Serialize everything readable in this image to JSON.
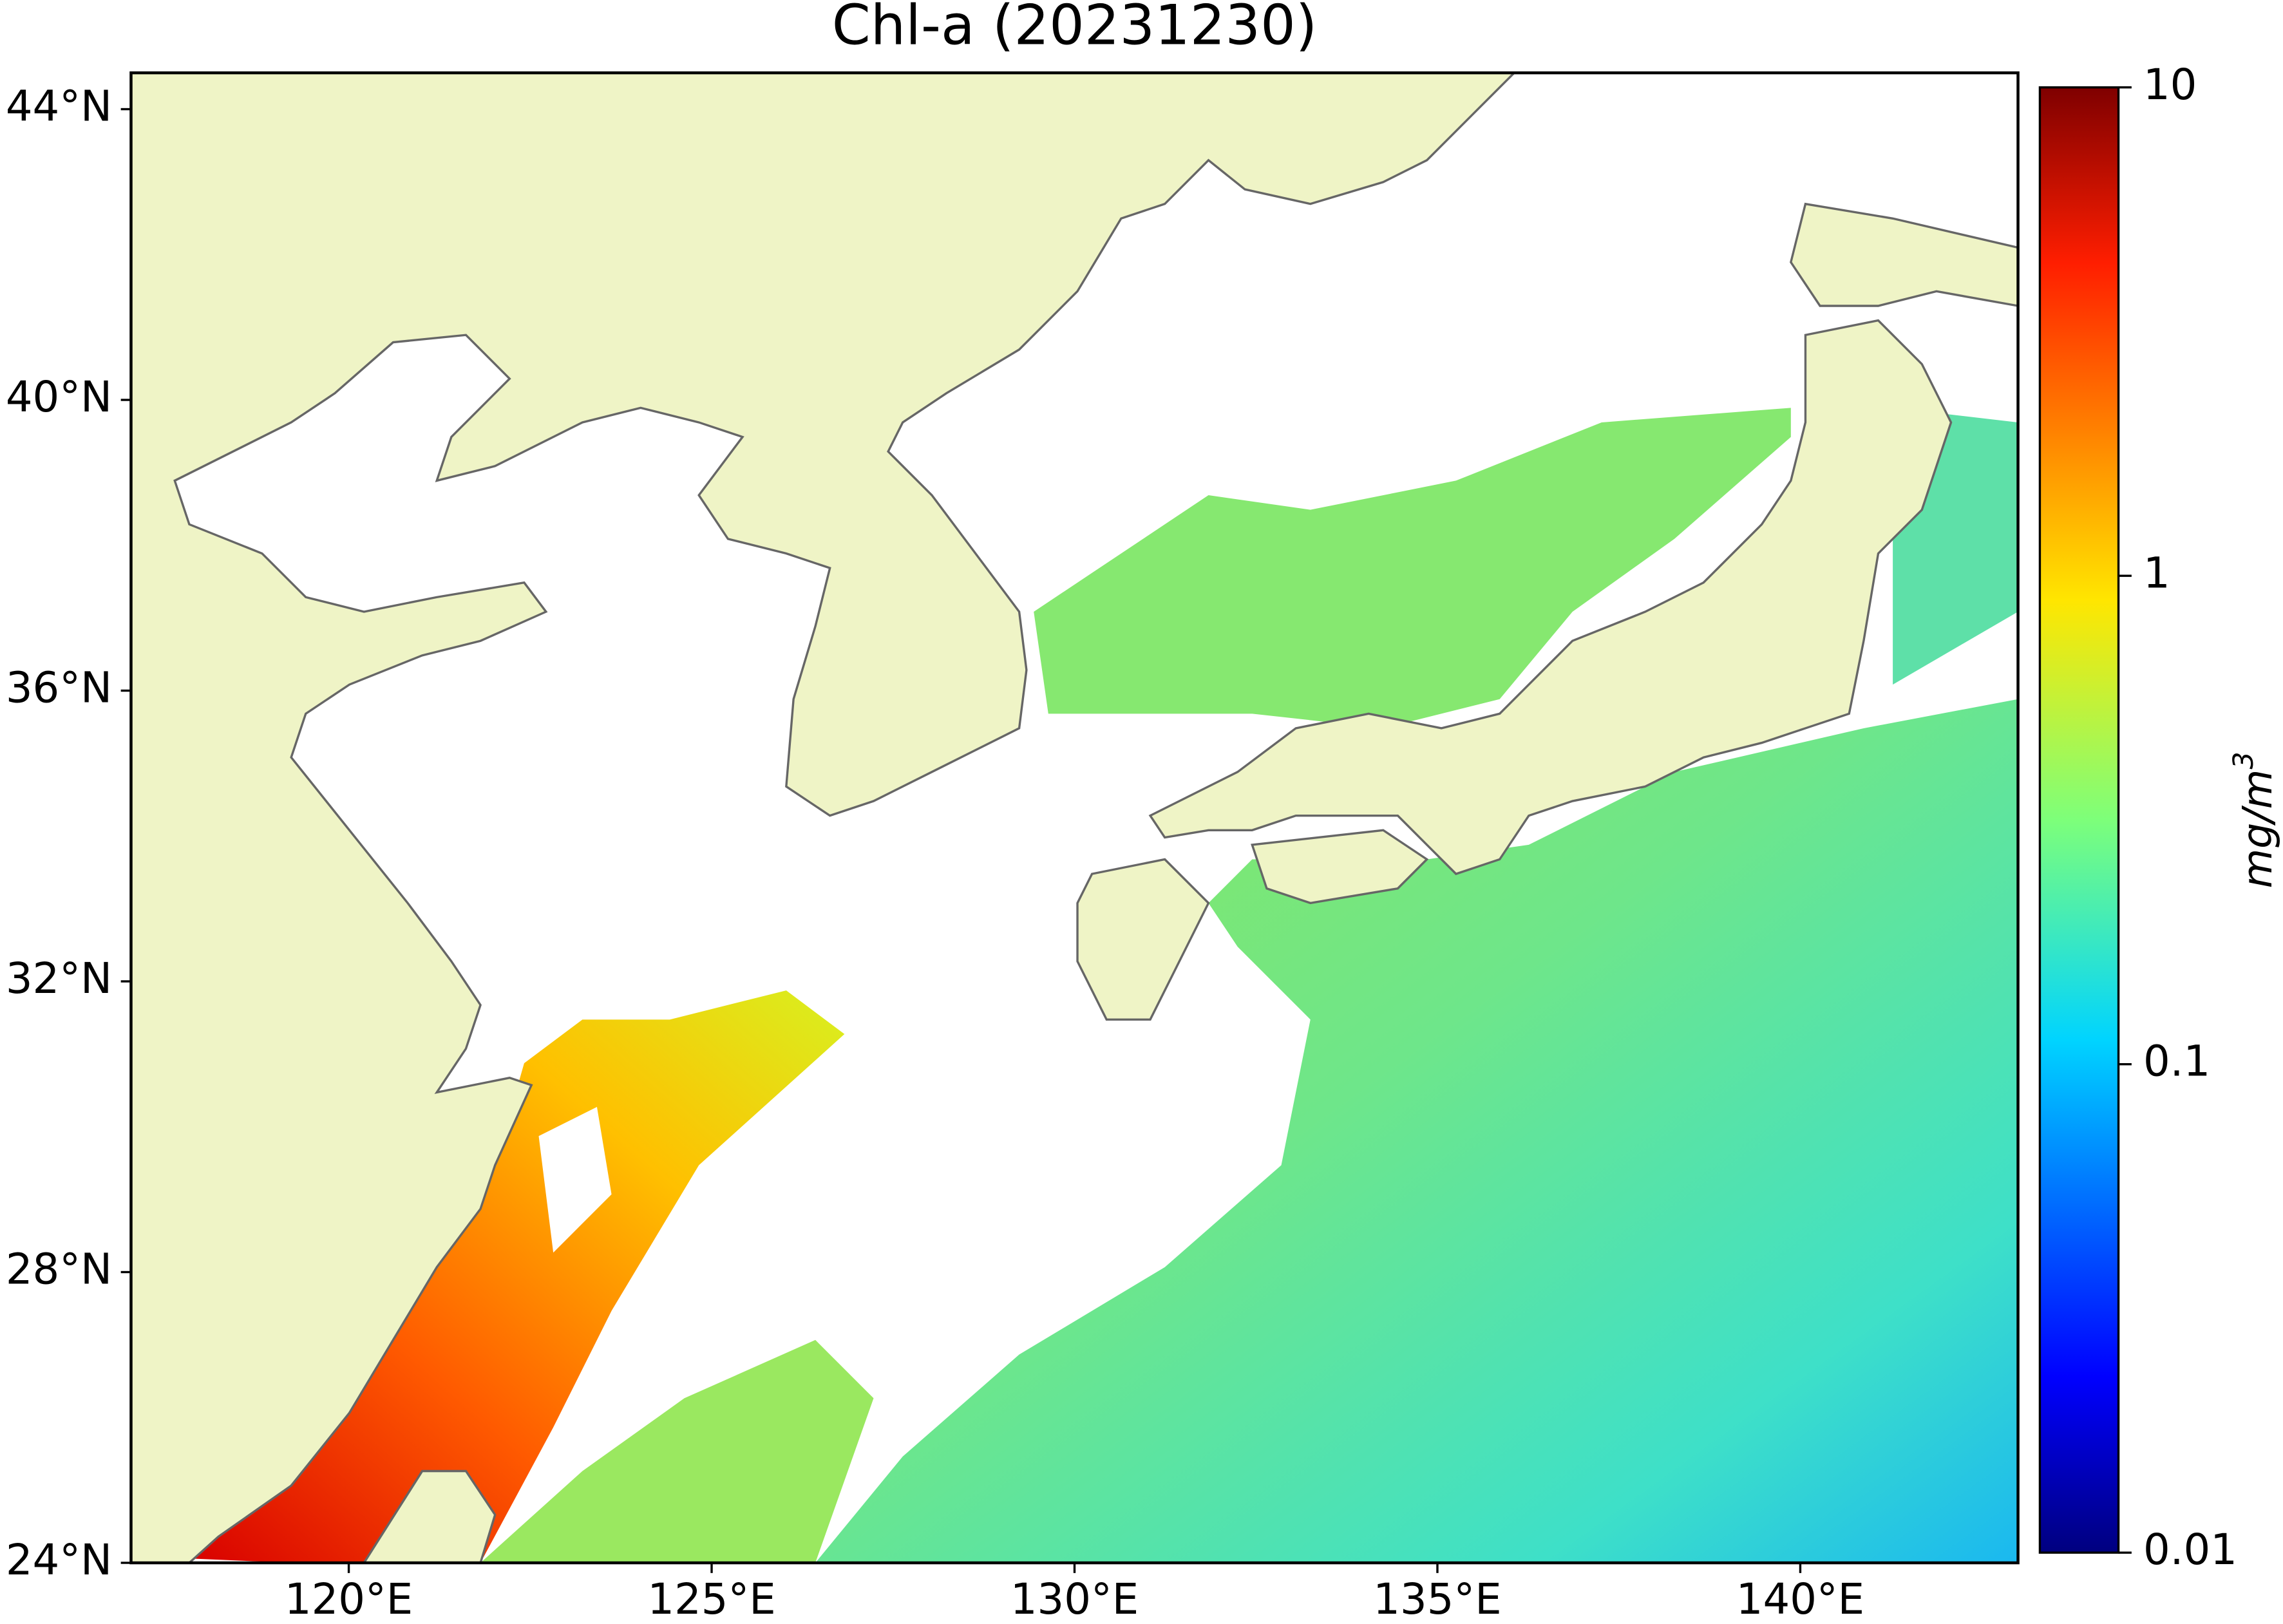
{
  "map": {
    "title": "Chl-a (20231230)",
    "xlim": [
      117,
      143
    ],
    "ylim": [
      24,
      44.5
    ],
    "xticks": [
      {
        "value": 120,
        "label": "120°E"
      },
      {
        "value": 125,
        "label": "125°E"
      },
      {
        "value": 130,
        "label": "130°E"
      },
      {
        "value": 135,
        "label": "135°E"
      },
      {
        "value": 140,
        "label": "140°E"
      }
    ],
    "yticks": [
      {
        "value": 24,
        "label": "24°N"
      },
      {
        "value": 28,
        "label": "28°N"
      },
      {
        "value": 32,
        "label": "32°N"
      },
      {
        "value": 36,
        "label": "36°N"
      },
      {
        "value": 40,
        "label": "40°N"
      },
      {
        "value": 44,
        "label": "44°N"
      }
    ],
    "colorbar": {
      "label": "mg/m",
      "label_superscript": "3",
      "lim": [
        0.01,
        10
      ],
      "ticks": [
        0.01,
        0.1,
        1,
        10
      ],
      "log": true
    }
  }
}
